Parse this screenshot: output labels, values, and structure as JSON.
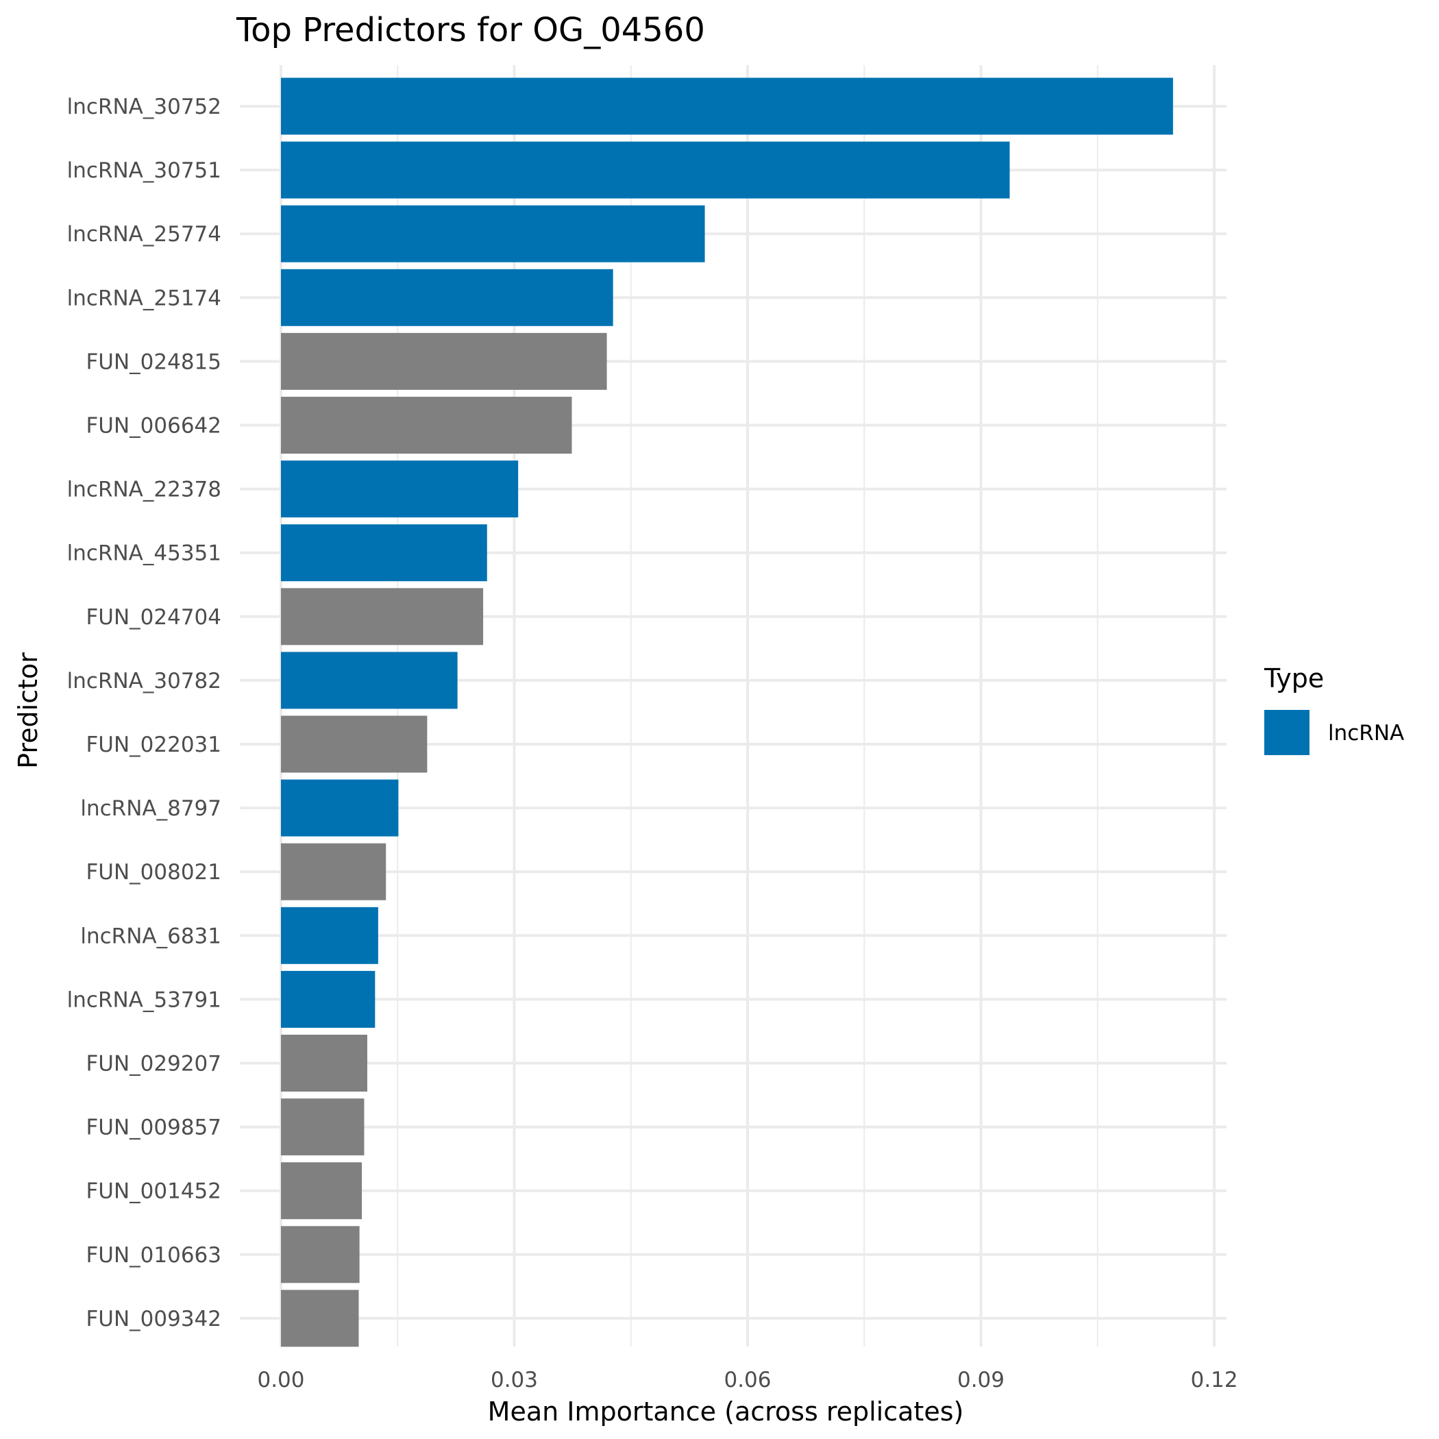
{
  "chart_data": {
    "type": "bar",
    "orientation": "horizontal",
    "title": "Top Predictors for OG_04560",
    "xlabel": "Mean Importance (across replicates)",
    "ylabel": "Predictor",
    "xlim": [
      0,
      0.12
    ],
    "x_ticks": [
      "0.00",
      "0.03",
      "0.06",
      "0.09",
      "0.12"
    ],
    "x_tick_values": [
      0,
      0.03,
      0.06,
      0.09,
      0.12
    ],
    "grid": true,
    "legend": {
      "title": "Type",
      "position": "right",
      "entries": [
        {
          "label": "lncRNA",
          "color": "#0072B2"
        }
      ]
    },
    "colors": {
      "lncRNA": "#0072B2",
      "FUN": "#808080"
    },
    "categories": [
      "lncRNA_30752",
      "lncRNA_30751",
      "lncRNA_25774",
      "lncRNA_25174",
      "FUN_024815",
      "FUN_006642",
      "lncRNA_22378",
      "lncRNA_45351",
      "FUN_024704",
      "lncRNA_30782",
      "FUN_022031",
      "lncRNA_8797",
      "FUN_008021",
      "lncRNA_6831",
      "lncRNA_53791",
      "FUN_029207",
      "FUN_009857",
      "FUN_001452",
      "FUN_010663",
      "FUN_009342"
    ],
    "types": [
      "lncRNA",
      "lncRNA",
      "lncRNA",
      "lncRNA",
      "FUN",
      "FUN",
      "lncRNA",
      "lncRNA",
      "FUN",
      "lncRNA",
      "FUN",
      "lncRNA",
      "FUN",
      "lncRNA",
      "lncRNA",
      "FUN",
      "FUN",
      "FUN",
      "FUN",
      "FUN"
    ],
    "values": [
      0.1147,
      0.0937,
      0.0545,
      0.0427,
      0.0419,
      0.0374,
      0.0305,
      0.0265,
      0.026,
      0.0227,
      0.0188,
      0.0151,
      0.0135,
      0.0125,
      0.0121,
      0.0111,
      0.0107,
      0.0104,
      0.0101,
      0.01
    ]
  }
}
